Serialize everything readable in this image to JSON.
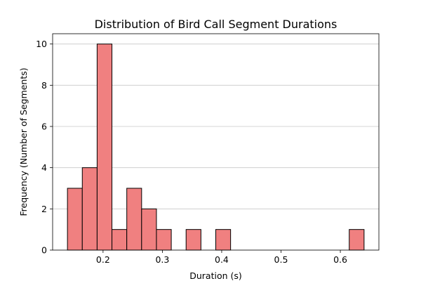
{
  "chart_data": {
    "type": "bar",
    "title": "Distribution of Bird Call Segment Durations",
    "xlabel": "Duration (s)",
    "ylabel": "Frequency (Number of Segments)",
    "xlim": [
      0.115,
      0.665
    ],
    "ylim": [
      0,
      10.5
    ],
    "xticks": [
      0.2,
      0.3,
      0.4,
      0.5,
      0.6
    ],
    "xtick_labels": [
      "0.2",
      "0.3",
      "0.4",
      "0.5",
      "0.6"
    ],
    "yticks": [
      0,
      2,
      4,
      6,
      8,
      10
    ],
    "ytick_labels": [
      "0",
      "2",
      "4",
      "6",
      "8",
      "10"
    ],
    "grid": "y-axis only",
    "bar_color": "#f08080",
    "edge_color": "#000000",
    "bins": [
      {
        "start": 0.14,
        "end": 0.165,
        "value": 3
      },
      {
        "start": 0.165,
        "end": 0.19,
        "value": 4
      },
      {
        "start": 0.19,
        "end": 0.215,
        "value": 10
      },
      {
        "start": 0.215,
        "end": 0.24,
        "value": 1
      },
      {
        "start": 0.24,
        "end": 0.265,
        "value": 3
      },
      {
        "start": 0.265,
        "end": 0.29,
        "value": 2
      },
      {
        "start": 0.29,
        "end": 0.315,
        "value": 1
      },
      {
        "start": 0.315,
        "end": 0.34,
        "value": 0
      },
      {
        "start": 0.34,
        "end": 0.365,
        "value": 1
      },
      {
        "start": 0.365,
        "end": 0.39,
        "value": 0
      },
      {
        "start": 0.39,
        "end": 0.415,
        "value": 1
      },
      {
        "start": 0.415,
        "end": 0.44,
        "value": 0
      },
      {
        "start": 0.44,
        "end": 0.465,
        "value": 0
      },
      {
        "start": 0.465,
        "end": 0.49,
        "value": 0
      },
      {
        "start": 0.49,
        "end": 0.515,
        "value": 0
      },
      {
        "start": 0.515,
        "end": 0.54,
        "value": 0
      },
      {
        "start": 0.54,
        "end": 0.565,
        "value": 0
      },
      {
        "start": 0.565,
        "end": 0.59,
        "value": 0
      },
      {
        "start": 0.59,
        "end": 0.615,
        "value": 0
      },
      {
        "start": 0.615,
        "end": 0.64,
        "value": 1
      }
    ]
  }
}
